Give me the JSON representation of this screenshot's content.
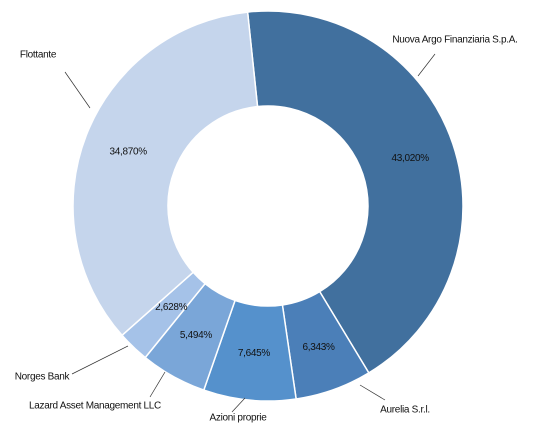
{
  "chart_data": {
    "type": "donut",
    "categories": [
      "Nuova Argo Finanziaria S.p.A.",
      "Aurelia S.r.l.",
      "Azioni proprie",
      "Lazard Asset Management LLC",
      "Norges Bank",
      "Flottante"
    ],
    "values": [
      43.02,
      6.343,
      7.645,
      5.494,
      2.628,
      34.87
    ],
    "value_labels": [
      "43,020%",
      "6,343%",
      "7,645%",
      "5,494%",
      "2,628%",
      "34,870%"
    ],
    "colors": [
      "#41709e",
      "#4b7fb8",
      "#5591cc",
      "#7aa6d8",
      "#a5c2e8",
      "#c5d5ec"
    ]
  }
}
